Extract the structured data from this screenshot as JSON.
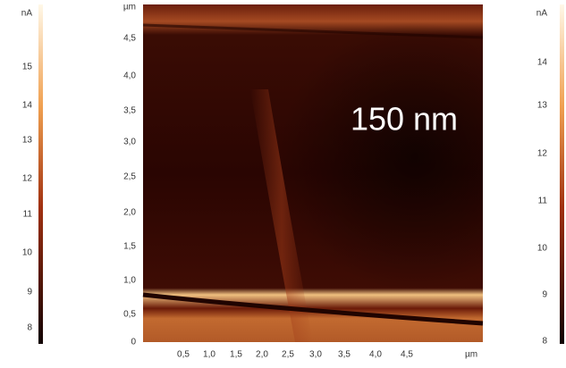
{
  "left_scale": {
    "unit": "nA",
    "labels": [
      "15",
      "14",
      "13",
      "12",
      "11",
      "10",
      "9",
      "8"
    ]
  },
  "image": {
    "y_unit": "µm",
    "y_labels": [
      "4,5",
      "4,0",
      "3,5",
      "3,0",
      "2,5",
      "2,0",
      "1,5",
      "1,0",
      "0,5",
      "0"
    ],
    "x_labels": [
      "0,5",
      "1,0",
      "1,5",
      "2,0",
      "2,5",
      "3,0",
      "3,5",
      "4,0",
      "4,5"
    ],
    "x_unit": "µm",
    "annotation": "150 nm"
  },
  "right_scale": {
    "unit": "nA",
    "labels": [
      "14",
      "13",
      "12",
      "11",
      "10",
      "9",
      "8"
    ]
  }
}
